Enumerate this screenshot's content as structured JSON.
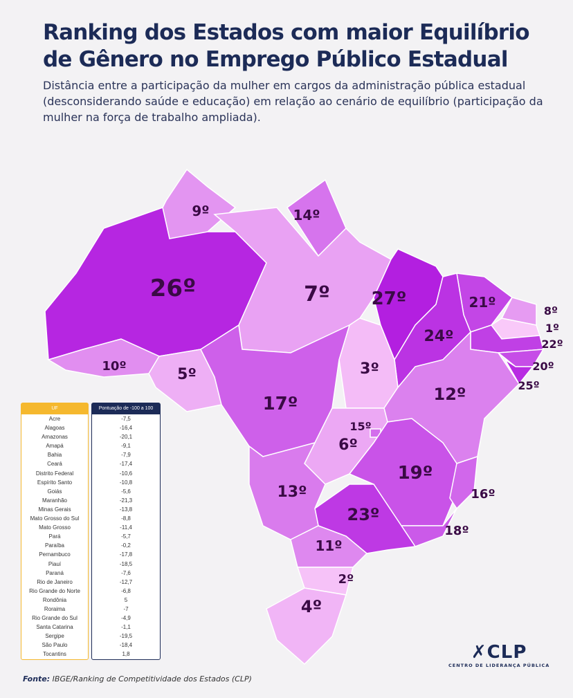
{
  "title": "Ranking dos Estados com maior Equilíbrio de Gênero no Emprego Público Estadual",
  "subtitle": "Distância entre a participação da mulher em cargos da administração pública estadual (desconsiderando saúde e educação) em relação ao cenário de equilíbrio (participação da mulher na força de trabalho ampliada).",
  "colors": {
    "light": "#f9c9f9",
    "dark": "#b31fe0",
    "label": "#3a0a45",
    "table_uf": "#f5b82e",
    "table_score": "#1c2b57"
  },
  "map_ranks": [
    {
      "state": "Roraima",
      "rank": "9º"
    },
    {
      "state": "Amapá",
      "rank": "14º"
    },
    {
      "state": "Amazonas",
      "rank": "26º"
    },
    {
      "state": "Pará",
      "rank": "7º"
    },
    {
      "state": "Maranhão",
      "rank": "27º"
    },
    {
      "state": "Ceará",
      "rank": "21º"
    },
    {
      "state": "Rio Grande do Norte",
      "rank": "8º"
    },
    {
      "state": "Paraíba",
      "rank": "1º"
    },
    {
      "state": "Pernambuco",
      "rank": "22º"
    },
    {
      "state": "Alagoas",
      "rank": "20º"
    },
    {
      "state": "Sergipe",
      "rank": "25º"
    },
    {
      "state": "Piauí",
      "rank": "24º"
    },
    {
      "state": "Acre",
      "rank": "10º"
    },
    {
      "state": "Rondônia",
      "rank": "5º"
    },
    {
      "state": "Tocantins",
      "rank": "3º"
    },
    {
      "state": "Bahia",
      "rank": "12º"
    },
    {
      "state": "Mato Grosso",
      "rank": "17º"
    },
    {
      "state": "Goiás",
      "rank": "6º"
    },
    {
      "state": "Distrito Federal",
      "rank": "15º"
    },
    {
      "state": "Minas Gerais",
      "rank": "19º"
    },
    {
      "state": "Espírito Santo",
      "rank": "16º"
    },
    {
      "state": "Rio de Janeiro",
      "rank": "18º"
    },
    {
      "state": "São Paulo",
      "rank": "23º"
    },
    {
      "state": "Mato Grosso do Sul",
      "rank": "13º"
    },
    {
      "state": "Paraná",
      "rank": "11º"
    },
    {
      "state": "Santa Catarina",
      "rank": "2º"
    },
    {
      "state": "Rio Grande do Sul",
      "rank": "4º"
    }
  ],
  "table": {
    "header_uf": "UF",
    "header_score": "Pontuação de -100 a 100",
    "rows": [
      [
        "Acre",
        "-7,5"
      ],
      [
        "Alagoas",
        "-16,4"
      ],
      [
        "Amazonas",
        "-20,1"
      ],
      [
        "Amapá",
        "-9,1"
      ],
      [
        "Bahia",
        "-7,9"
      ],
      [
        "Ceará",
        "-17,4"
      ],
      [
        "Distrito Federal",
        "-10,6"
      ],
      [
        "Espírito Santo",
        "-10,8"
      ],
      [
        "Goiás",
        "-5,6"
      ],
      [
        "Maranhão",
        "-21,3"
      ],
      [
        "Minas Gerais",
        "-13,8"
      ],
      [
        "Mato Grosso do Sul",
        "-8,8"
      ],
      [
        "Mato Grosso",
        "-11,4"
      ],
      [
        "Pará",
        "-5,7"
      ],
      [
        "Paraíba",
        "-0,2"
      ],
      [
        "Pernambuco",
        "-17,8"
      ],
      [
        "Piauí",
        "-18,5"
      ],
      [
        "Paraná",
        "-7,6"
      ],
      [
        "Rio de Janeiro",
        "-12,7"
      ],
      [
        "Rio Grande do Norte",
        "-6,8"
      ],
      [
        "Rondônia",
        "5"
      ],
      [
        "Roraima",
        "-7"
      ],
      [
        "Rio Grande do Sul",
        "-4,9"
      ],
      [
        "Santa Catarina",
        "-1,1"
      ],
      [
        "Sergipe",
        "-19,5"
      ],
      [
        "São Paulo",
        "-18,4"
      ],
      [
        "Tocantins",
        "1,8"
      ]
    ]
  },
  "source_label": "Fonte:",
  "source_text": "IBGE/Ranking de Competitividade dos Estados (CLP)",
  "logo": {
    "name": "CLP",
    "tagline": "CENTRO DE LIDERANÇA PÚBLICA"
  }
}
